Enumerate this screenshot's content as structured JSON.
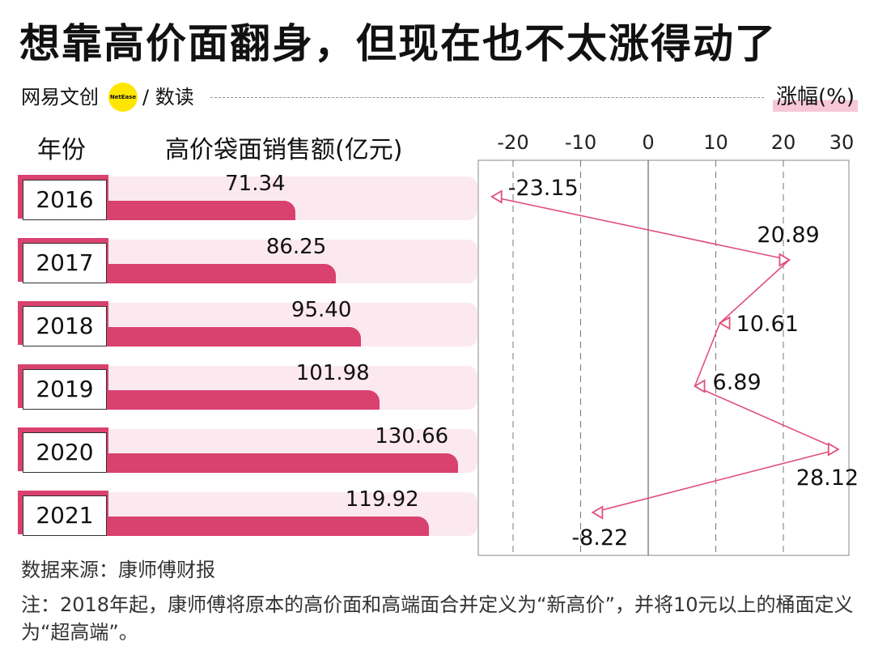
{
  "title": "想靠高价面翻身，但现在也不太涨得动了",
  "brand": {
    "name": "网易文创",
    "badge": "NetEase",
    "sub": "/ 数读"
  },
  "pct_header": "涨幅(%)",
  "col_year_header": "年份",
  "col_sales_header": "高价袋面销售额(亿元)",
  "source": "数据来源：康师傅财报",
  "note": "注：2018年起，康师傅将原本的高价面和高端面合并定义为“新高价”，并将10元以上的桶面定义为“超高端”。",
  "colors": {
    "bar": "#d9416f",
    "bar_bg": "#fbe9ef",
    "line": "#e0507a",
    "highlight": "#f7c7d7"
  },
  "chart_data": [
    {
      "type": "bar",
      "orientation": "horizontal",
      "title": "高价袋面销售额(亿元)",
      "ylabel": "年份",
      "categories": [
        "2016",
        "2017",
        "2018",
        "2019",
        "2020",
        "2021"
      ],
      "values": [
        71.34,
        86.25,
        95.4,
        101.98,
        130.66,
        119.92
      ],
      "value_labels": [
        "71.34",
        "86.25",
        "95.40",
        "101.98",
        "130.66",
        "119.92"
      ],
      "xlim": [
        0,
        150
      ]
    },
    {
      "type": "line",
      "orientation": "vertical",
      "title": "涨幅(%)",
      "categories": [
        "2016",
        "2017",
        "2018",
        "2019",
        "2020",
        "2021"
      ],
      "values": [
        -23.15,
        20.89,
        10.61,
        6.89,
        28.12,
        -8.22
      ],
      "value_labels": [
        "-23.15",
        "20.89",
        "10.61",
        "6.89",
        "28.12",
        "-8.22"
      ],
      "xlim": [
        -25,
        30
      ],
      "ticks": [
        -20,
        -10,
        0,
        10,
        20,
        30
      ],
      "tick_labels": [
        "-20",
        "-10",
        "0",
        "10",
        "20",
        "30"
      ],
      "grid": true
    }
  ]
}
